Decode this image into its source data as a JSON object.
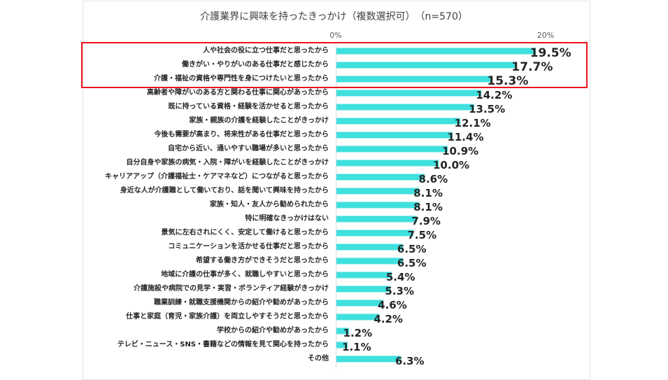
{
  "chart_data": {
    "type": "bar",
    "orientation": "horizontal",
    "title": "介護業界に興味を持ったきっかけ（複数選択可）　（n=570）",
    "xlim": [
      0,
      20
    ],
    "x_ticks": [
      "0%",
      "20%"
    ],
    "highlight_top": 3,
    "bar_color": "#40e0de",
    "highlight_color": "#e8131b",
    "categories": [
      "人や社会の役に立つ仕事だと思ったから",
      "働きがい・やりがいのある仕事だと感じたから",
      "介護・福祉の資格や専門性を身につけたいと思ったから",
      "高齢者や障がいのある方と関わる仕事に関心があったから",
      "既に持っている資格・経験を活かせると思ったから",
      "家族・親族の介護を経験したことがきっかけ",
      "今後も需要が高まり、将来性がある仕事だと思ったから",
      "自宅から近い、通いやすい職場が多いと思ったから",
      "自分自身や家族の病気・入院・障がいを経験したことがきっかけ",
      "キャリアアップ（介護福祉士・ケアマネなど）につながると思ったから",
      "身近な人が介護職として働いており、話を聞いて興味を持ったから",
      "家族・知人・友人から勧められたから",
      "特に明確なきっかけはない",
      "景気に左右されにくく、安定して働けると思ったから",
      "コミュニケーションを活かせる仕事だと思ったから",
      "希望する働き方ができそうだと思ったから",
      "地域に介護の仕事が多く、就職しやすいと思ったから",
      "介護施設や病院での見学・実習・ボランティア経験がきっかけ",
      "職業訓練・就職支援機関からの紹介や勧めがあったから",
      "仕事と家庭（育児・家族介護）を両立しやすそうだと思ったから",
      "学校からの紹介や勧めがあったから",
      "テレビ・ニュース・SNS・書籍などの情報を見て関心を持ったから",
      "その他"
    ],
    "values": [
      19.5,
      17.7,
      15.3,
      14.2,
      13.5,
      12.1,
      11.4,
      10.9,
      10.0,
      8.6,
      8.1,
      8.1,
      7.9,
      7.5,
      6.5,
      6.5,
      5.4,
      5.3,
      4.6,
      4.2,
      1.2,
      1.1,
      6.3
    ],
    "value_labels": [
      "19.5%",
      "17.7%",
      "15.3%",
      "14.2%",
      "13.5%",
      "12.1%",
      "11.4%",
      "10.9%",
      "10.0%",
      "8.6%",
      "8.1%",
      "8.1%",
      "7.9%",
      "7.5%",
      "6.5%",
      "6.5%",
      "5.4%",
      "5.3%",
      "4.6%",
      "4.2%",
      "1.2%",
      "1.1%",
      "6.3%"
    ]
  }
}
